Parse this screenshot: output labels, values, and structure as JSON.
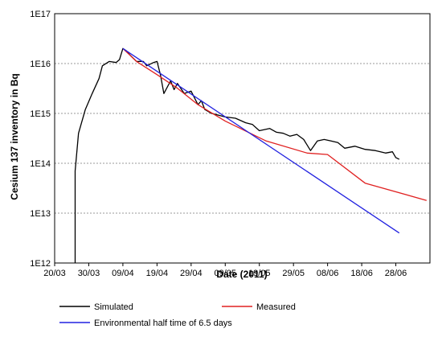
{
  "chart_data": {
    "type": "line",
    "title": "",
    "xlabel": "Date (2011)",
    "ylabel": "Cesium 137 inventory in Bq",
    "y_scale": "log",
    "ylim": [
      1000000000000.0,
      1e+17
    ],
    "xlim": [
      "2011-03-20",
      "2011-07-08"
    ],
    "x_ticks": [
      "20/03",
      "30/03",
      "09/04",
      "19/04",
      "29/04",
      "09/05",
      "19/05",
      "29/05",
      "08/06",
      "18/06",
      "28/06"
    ],
    "y_ticks": [
      "1E12",
      "1E13",
      "1E14",
      "1E15",
      "1E16",
      "1E17"
    ],
    "grid": "horizontal dashed",
    "legend": "bottom",
    "series": [
      {
        "name": "Simulated",
        "color": "#000000",
        "points": [
          [
            "2011-03-26",
            1000000000000.0
          ],
          [
            "2011-03-26",
            70000000000000.0
          ],
          [
            "2011-03-27",
            400000000000000.0
          ],
          [
            "2011-03-29",
            1200000000000000.0
          ],
          [
            "2011-03-31",
            2500000000000000.0
          ],
          [
            "2011-04-02",
            5000000000000000.0
          ],
          [
            "2011-04-03",
            9000000000000000.0
          ],
          [
            "2011-04-05",
            1.1e+16
          ],
          [
            "2011-04-07",
            1.05e+16
          ],
          [
            "2011-04-08",
            1.2e+16
          ],
          [
            "2011-04-09",
            2e+16
          ],
          [
            "2011-04-10",
            1.8e+16
          ],
          [
            "2011-04-11",
            1.5e+16
          ],
          [
            "2011-04-13",
            1.1e+16
          ],
          [
            "2011-04-15",
            1.1e+16
          ],
          [
            "2011-04-16",
            9000000000000000.0
          ],
          [
            "2011-04-18",
            1.05e+16
          ],
          [
            "2011-04-19",
            1.1e+16
          ],
          [
            "2011-04-20",
            6000000000000000.0
          ],
          [
            "2011-04-21",
            2500000000000000.0
          ],
          [
            "2011-04-23",
            4500000000000000.0
          ],
          [
            "2011-04-24",
            3000000000000000.0
          ],
          [
            "2011-04-25",
            4000000000000000.0
          ],
          [
            "2011-04-27",
            2500000000000000.0
          ],
          [
            "2011-04-29",
            2800000000000000.0
          ],
          [
            "2011-05-01",
            1500000000000000.0
          ],
          [
            "2011-05-02",
            1800000000000000.0
          ],
          [
            "2011-05-03",
            1200000000000000.0
          ],
          [
            "2011-05-05",
            1000000000000000.0
          ],
          [
            "2011-05-09",
            850000000000000.0
          ],
          [
            "2011-05-12",
            800000000000000.0
          ],
          [
            "2011-05-15",
            650000000000000.0
          ],
          [
            "2011-05-17",
            600000000000000.0
          ],
          [
            "2011-05-19",
            450000000000000.0
          ],
          [
            "2011-05-22",
            500000000000000.0
          ],
          [
            "2011-05-24",
            420000000000000.0
          ],
          [
            "2011-05-26",
            400000000000000.0
          ],
          [
            "2011-05-28",
            350000000000000.0
          ],
          [
            "2011-05-30",
            380000000000000.0
          ],
          [
            "2011-06-01",
            300000000000000.0
          ],
          [
            "2011-06-03",
            180000000000000.0
          ],
          [
            "2011-06-05",
            280000000000000.0
          ],
          [
            "2011-06-07",
            300000000000000.0
          ],
          [
            "2011-06-09",
            280000000000000.0
          ],
          [
            "2011-06-11",
            260000000000000.0
          ],
          [
            "2011-06-13",
            200000000000000.0
          ],
          [
            "2011-06-16",
            220000000000000.0
          ],
          [
            "2011-06-19",
            190000000000000.0
          ],
          [
            "2011-06-22",
            180000000000000.0
          ],
          [
            "2011-06-25",
            160000000000000.0
          ],
          [
            "2011-06-27",
            170000000000000.0
          ],
          [
            "2011-06-28",
            130000000000000.0
          ],
          [
            "2011-06-29",
            120000000000000.0
          ]
        ]
      },
      {
        "name": "Measured",
        "color": "#e02020",
        "points": [
          [
            "2011-04-09",
            2e+16
          ],
          [
            "2011-04-13",
            1.1e+16
          ],
          [
            "2011-04-19",
            6000000000000000.0
          ],
          [
            "2011-04-25",
            3200000000000000.0
          ],
          [
            "2011-05-01",
            1500000000000000.0
          ],
          [
            "2011-05-09",
            700000000000000.0
          ],
          [
            "2011-05-21",
            280000000000000.0
          ],
          [
            "2011-06-02",
            160000000000000.0
          ],
          [
            "2011-06-08",
            150000000000000.0
          ],
          [
            "2011-06-19",
            40000000000000.0
          ],
          [
            "2011-07-07",
            18000000000000.0
          ]
        ]
      },
      {
        "name": "Environmental half time of 6.5 days",
        "color": "#2020e0",
        "points": [
          [
            "2011-04-09",
            2e+16
          ],
          [
            "2011-06-29",
            4000000000000.0
          ]
        ]
      }
    ]
  }
}
